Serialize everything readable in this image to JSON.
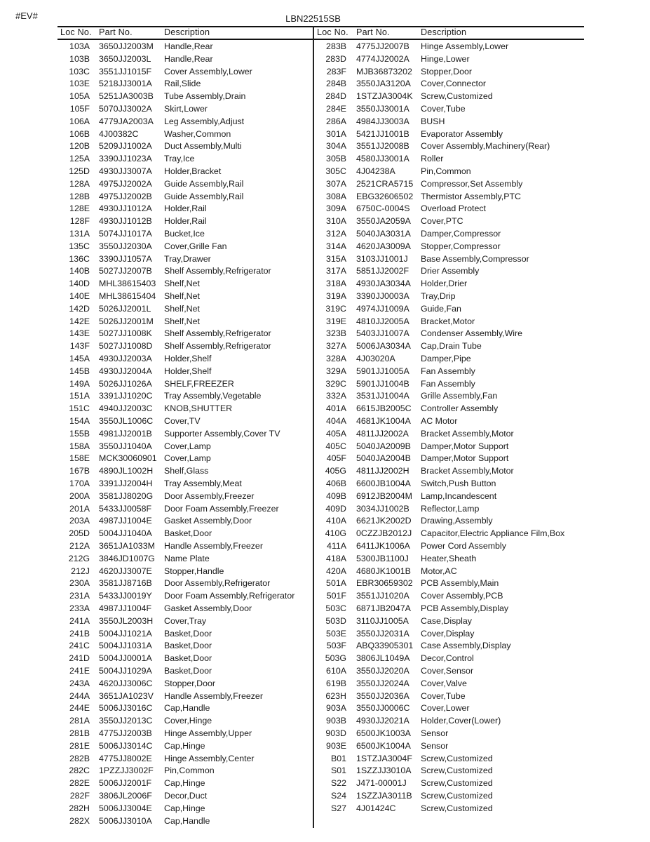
{
  "tag": "#EV#",
  "title": "LBN22515SB",
  "headers": {
    "loc": "Loc No.",
    "part": "Part No.",
    "desc": "Description"
  },
  "left": [
    [
      "103A",
      "3650JJ2003M",
      "Handle,Rear"
    ],
    [
      "103B",
      "3650JJ2003L",
      "Handle,Rear"
    ],
    [
      "103C",
      "3551JJ1015F",
      "Cover Assembly,Lower"
    ],
    [
      "103E",
      "5218JJ3001A",
      "Rail,Slide"
    ],
    [
      "105A",
      "5251JA3003B",
      "Tube Assembly,Drain"
    ],
    [
      "105F",
      "5070JJ3002A",
      "Skirt,Lower"
    ],
    [
      "106A",
      "4779JA2003A",
      "Leg Assembly,Adjust"
    ],
    [
      "106B",
      "4J00382C",
      "Washer,Common"
    ],
    [
      "120B",
      "5209JJ1002A",
      "Duct Assembly,Multi"
    ],
    [
      "125A",
      "3390JJ1023A",
      "Tray,Ice"
    ],
    [
      "125D",
      "4930JJ3007A",
      "Holder,Bracket"
    ],
    [
      "128A",
      "4975JJ2002A",
      "Guide Assembly,Rail"
    ],
    [
      "128B",
      "4975JJ2002B",
      "Guide Assembly,Rail"
    ],
    [
      "128E",
      "4930JJ1012A",
      "Holder,Rail"
    ],
    [
      "128F",
      "4930JJ1012B",
      "Holder,Rail"
    ],
    [
      "131A",
      "5074JJ1017A",
      "Bucket,Ice"
    ],
    [
      "135C",
      "3550JJ2030A",
      "Cover,Grille Fan"
    ],
    [
      "136C",
      "3390JJ1057A",
      "Tray,Drawer"
    ],
    [
      "140B",
      "5027JJ2007B",
      "Shelf Assembly,Refrigerator"
    ],
    [
      "140D",
      "MHL38615403",
      "Shelf,Net"
    ],
    [
      "140E",
      "MHL38615404",
      "Shelf,Net"
    ],
    [
      "142D",
      "5026JJ2001L",
      "Shelf,Net"
    ],
    [
      "142E",
      "5026JJ2001M",
      "Shelf,Net"
    ],
    [
      "143E",
      "5027JJ1008K",
      "Shelf Assembly,Refrigerator"
    ],
    [
      "143F",
      "5027JJ1008D",
      "Shelf Assembly,Refrigerator"
    ],
    [
      "145A",
      "4930JJ2003A",
      "Holder,Shelf"
    ],
    [
      "145B",
      "4930JJ2004A",
      "Holder,Shelf"
    ],
    [
      "149A",
      "5026JJ1026A",
      "SHELF,FREEZER"
    ],
    [
      "151A",
      "3391JJ1020C",
      "Tray Assembly,Vegetable"
    ],
    [
      "151C",
      "4940JJ2003C",
      "KNOB,SHUTTER"
    ],
    [
      "154A",
      "3550JL1006C",
      "Cover,TV"
    ],
    [
      "155B",
      "4981JJ2001B",
      "Supporter Assembly,Cover TV"
    ],
    [
      "158A",
      "3550JJ1040A",
      "Cover,Lamp"
    ],
    [
      "158E",
      "MCK30060901",
      "Cover,Lamp"
    ],
    [
      "167B",
      "4890JL1002H",
      "Shelf,Glass"
    ],
    [
      "170A",
      "3391JJ2004H",
      "Tray Assembly,Meat"
    ],
    [
      "200A",
      "3581JJ8020G",
      "Door Assembly,Freezer"
    ],
    [
      "201A",
      "5433JJ0058F",
      "Door Foam Assembly,Freezer"
    ],
    [
      "203A",
      "4987JJ1004E",
      "Gasket Assembly,Door"
    ],
    [
      "205D",
      "5004JJ1040A",
      "Basket,Door"
    ],
    [
      "212A",
      "3651JA1033M",
      "Handle Assembly,Freezer"
    ],
    [
      "212G",
      "3846JD1007G",
      "Name Plate"
    ],
    [
      "212J",
      "4620JJ3007E",
      "Stopper,Handle"
    ],
    [
      "230A",
      "3581JJ8716B",
      "Door Assembly,Refrigerator"
    ],
    [
      "231A",
      "5433JJ0019Y",
      "Door Foam Assembly,Refrigerator"
    ],
    [
      "233A",
      "4987JJ1004F",
      "Gasket Assembly,Door"
    ],
    [
      "241A",
      "3550JL2003H",
      "Cover,Tray"
    ],
    [
      "241B",
      "5004JJ1021A",
      "Basket,Door"
    ],
    [
      "241C",
      "5004JJ1031A",
      "Basket,Door"
    ],
    [
      "241D",
      "5004JJ0001A",
      "Basket,Door"
    ],
    [
      "241E",
      "5004JJ1029A",
      "Basket,Door"
    ],
    [
      "243A",
      "4620JJ3006C",
      "Stopper,Door"
    ],
    [
      "244A",
      "3651JA1023V",
      "Handle Assembly,Freezer"
    ],
    [
      "244E",
      "5006JJ3016C",
      "Cap,Handle"
    ],
    [
      "281A",
      "3550JJ2013C",
      "Cover,Hinge"
    ],
    [
      "281B",
      "4775JJ2003B",
      "Hinge Assembly,Upper"
    ],
    [
      "281E",
      "5006JJ3014C",
      "Cap,Hinge"
    ],
    [
      "282B",
      "4775JJ8002E",
      "Hinge Assembly,Center"
    ],
    [
      "282C",
      "1PZZJJ3002F",
      "Pin,Common"
    ],
    [
      "282E",
      "5006JJ2001F",
      "Cap,Hinge"
    ],
    [
      "282F",
      "3806JL2006F",
      "Decor,Duct"
    ],
    [
      "282H",
      "5006JJ3004E",
      "Cap,Hinge"
    ],
    [
      "282X",
      "5006JJ3010A",
      "Cap,Handle"
    ]
  ],
  "right": [
    [
      "283B",
      "4775JJ2007B",
      "Hinge Assembly,Lower"
    ],
    [
      "283D",
      "4774JJ2002A",
      "Hinge,Lower"
    ],
    [
      "283F",
      "MJB36873202",
      "Stopper,Door"
    ],
    [
      "284B",
      "3550JA3120A",
      "Cover,Connector"
    ],
    [
      "284D",
      "1STZJA3004K",
      "Screw,Customized"
    ],
    [
      "284E",
      "3550JJ3001A",
      "Cover,Tube"
    ],
    [
      "286A",
      "4984JJ3003A",
      "BUSH"
    ],
    [
      "301A",
      "5421JJ1001B",
      "Evaporator Assembly"
    ],
    [
      "304A",
      "3551JJ2008B",
      "Cover Assembly,Machinery(Rear)"
    ],
    [
      "305B",
      "4580JJ3001A",
      "Roller"
    ],
    [
      "305C",
      "4J04238A",
      "Pin,Common"
    ],
    [
      "307A",
      "2521CRA5715",
      "Compressor,Set Assembly"
    ],
    [
      "308A",
      "EBG32606502",
      "Thermistor Assembly,PTC"
    ],
    [
      "309A",
      "6750C-0004S",
      "Overload Protect"
    ],
    [
      "310A",
      "3550JA2059A",
      "Cover,PTC"
    ],
    [
      "312A",
      "5040JA3031A",
      "Damper,Compressor"
    ],
    [
      "314A",
      "4620JA3009A",
      "Stopper,Compressor"
    ],
    [
      "315A",
      "3103JJ1001J",
      "Base Assembly,Compressor"
    ],
    [
      "317A",
      "5851JJ2002F",
      "Drier Assembly"
    ],
    [
      "318A",
      "4930JA3034A",
      "Holder,Drier"
    ],
    [
      "319A",
      "3390JJ0003A",
      "Tray,Drip"
    ],
    [
      "319C",
      "4974JJ1009A",
      "Guide,Fan"
    ],
    [
      "319E",
      "4810JJ2005A",
      "Bracket,Motor"
    ],
    [
      "323B",
      "5403JJ1007A",
      "Condenser Assembly,Wire"
    ],
    [
      "327A",
      "5006JA3034A",
      "Cap,Drain Tube"
    ],
    [
      "328A",
      "4J03020A",
      "Damper,Pipe"
    ],
    [
      "329A",
      "5901JJ1005A",
      "Fan Assembly"
    ],
    [
      "329C",
      "5901JJ1004B",
      "Fan Assembly"
    ],
    [
      "332A",
      "3531JJ1004A",
      "Grille Assembly,Fan"
    ],
    [
      "401A",
      "6615JB2005C",
      "Controller Assembly"
    ],
    [
      "404A",
      "4681JK1004A",
      "AC Motor"
    ],
    [
      "405A",
      "4811JJ2002A",
      "Bracket Assembly,Motor"
    ],
    [
      "405C",
      "5040JA2009B",
      "Damper,Motor Support"
    ],
    [
      "405F",
      "5040JA2004B",
      "Damper,Motor Support"
    ],
    [
      "405G",
      "4811JJ2002H",
      "Bracket Assembly,Motor"
    ],
    [
      "406B",
      "6600JB1004A",
      "Switch,Push Button"
    ],
    [
      "409B",
      "6912JB2004M",
      "Lamp,Incandescent"
    ],
    [
      "409D",
      "3034JJ1002B",
      "Reflector,Lamp"
    ],
    [
      "410A",
      "6621JK2002D",
      "Drawing,Assembly"
    ],
    [
      "410G",
      "0CZZJB2012J",
      "Capacitor,Electric Appliance Film,Box"
    ],
    [
      "411A",
      "6411JK1006A",
      "Power Cord Assembly"
    ],
    [
      "418A",
      "5300JB1100J",
      "Heater,Sheath"
    ],
    [
      "420A",
      "4680JK1001B",
      "Motor,AC"
    ],
    [
      "501A",
      "EBR30659302",
      "PCB Assembly,Main"
    ],
    [
      "501F",
      "3551JJ1020A",
      "Cover Assembly,PCB"
    ],
    [
      "503C",
      "6871JB2047A",
      "PCB Assembly,Display"
    ],
    [
      "503D",
      "3110JJ1005A",
      "Case,Display"
    ],
    [
      "503E",
      "3550JJ2031A",
      "Cover,Display"
    ],
    [
      "503F",
      "ABQ33905301",
      "Case Assembly,Display"
    ],
    [
      "503G",
      "3806JL1049A",
      "Decor,Control"
    ],
    [
      "610A",
      "3550JJ2020A",
      "Cover,Sensor"
    ],
    [
      "619B",
      "3550JJ2024A",
      "Cover,Valve"
    ],
    [
      "623H",
      "3550JJ2036A",
      "Cover,Tube"
    ],
    [
      "903A",
      "3550JJ0006C",
      "Cover,Lower"
    ],
    [
      "903B",
      "4930JJ2021A",
      "Holder,Cover(Lower)"
    ],
    [
      "903D",
      "6500JK1003A",
      "Sensor"
    ],
    [
      "903E",
      "6500JK1004A",
      "Sensor"
    ],
    [
      "B01",
      "1STZJA3004F",
      "Screw,Customized"
    ],
    [
      "S01",
      "1SZZJJ3010A",
      "Screw,Customized"
    ],
    [
      "S22",
      "J471-00001J",
      "Screw,Customized"
    ],
    [
      "S24",
      "1SZZJA3011B",
      "Screw,Customized"
    ],
    [
      "S27",
      "4J01424C",
      "Screw,Customized"
    ]
  ]
}
